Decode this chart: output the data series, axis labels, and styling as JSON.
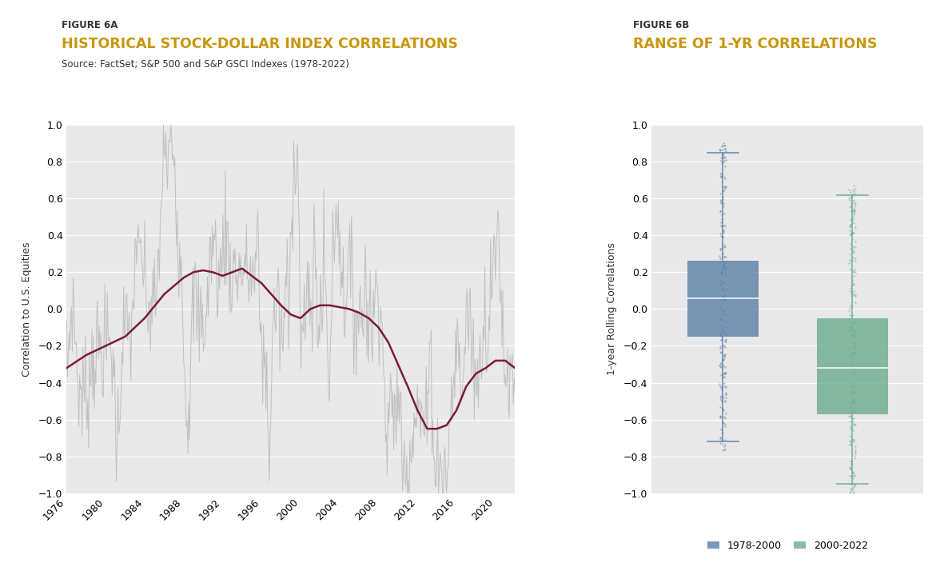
{
  "fig6a_label": "FIGURE 6A",
  "fig6a_title": "HISTORICAL STOCK-DOLLAR INDEX CORRELATIONS",
  "fig6a_source": "Source: FactSet; S&P 500 and S&P GSCI Indexes (1978-2022)",
  "fig6b_label": "FIGURE 6B",
  "fig6b_title": "RANGE OF 1-YR CORRELATIONS",
  "fig6a_ylabel": "Correlation to U.S. Equities",
  "fig6b_ylabel": "1-year Rolling Correlations",
  "fig6a_ylim": [
    -1.0,
    1.0
  ],
  "fig6b_ylim": [
    -1.0,
    1.0
  ],
  "xticks": [
    1976,
    1980,
    1984,
    1988,
    1992,
    1996,
    2000,
    2004,
    2008,
    2012,
    2016,
    2020
  ],
  "title_color": "#C8960C",
  "label_color": "#333333",
  "bg_color": "#E8E8E8",
  "white_bg": "#FFFFFF",
  "line1yr_color": "#C0C0C0",
  "line5yr_color": "#7B1A3E",
  "box1_color": "#5B7FA6",
  "box2_color": "#6AAB8E",
  "box1_label": "1978-2000",
  "box2_label": "2000-2022",
  "box1_stats": {
    "whislo": -0.72,
    "q1": -0.15,
    "med": 0.06,
    "q3": 0.26,
    "whishi": 0.85
  },
  "box2_stats": {
    "whislo": -0.95,
    "q1": -0.57,
    "med": -0.32,
    "q3": -0.05,
    "whishi": 0.62
  }
}
